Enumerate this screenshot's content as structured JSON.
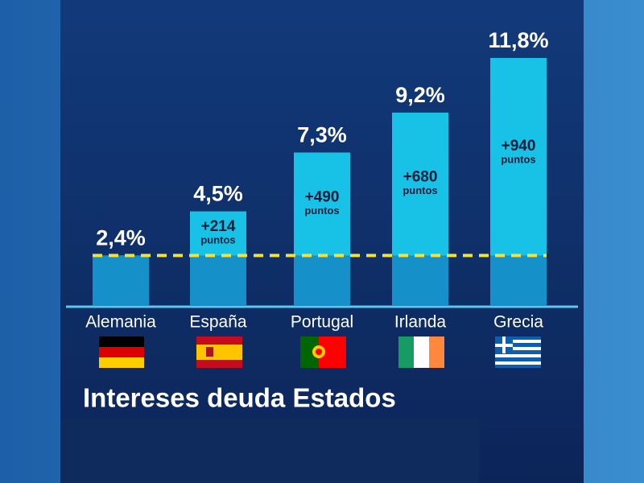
{
  "chart_data": {
    "type": "bar",
    "title": "Intereses deuda Estados",
    "categories": [
      "Alemania",
      "España",
      "Portugal",
      "Irlanda",
      "Grecia"
    ],
    "values": [
      2.4,
      4.5,
      7.3,
      9.2,
      11.8
    ],
    "value_labels": [
      "2,4%",
      "4,5%",
      "7,3%",
      "9,2%",
      "11,8%"
    ],
    "spread_labels": [
      null,
      "+214",
      "+490",
      "+680",
      "+940"
    ],
    "spread_unit": "puntos",
    "color": "#17c2e6",
    "reference_line_color": "#f2e23a"
  }
}
